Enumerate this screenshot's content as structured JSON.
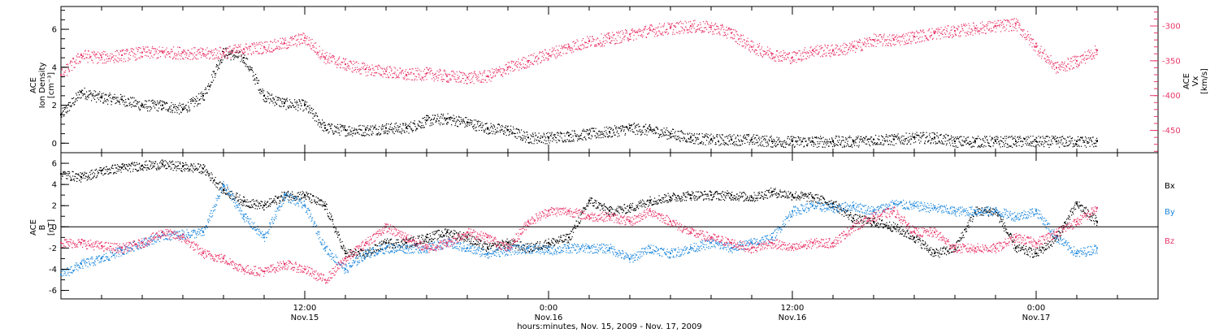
{
  "colors": {
    "black": "#000000",
    "pink": "#e8386a",
    "blue": "#1e88dc",
    "background": "#ffffff"
  },
  "chart_data": [
    {
      "type": "scatter",
      "panel": "top",
      "ylabel": [
        "ACE",
        "Ion Density",
        "[cm⁻³]"
      ],
      "ylabel_right": [
        "ACE",
        "Vx",
        "[km/s]"
      ],
      "ylim": [
        -0.5,
        7.2
      ],
      "yticks": [
        0,
        2,
        4,
        6
      ],
      "ylim_right": [
        -482,
        -272
      ],
      "yticks_right": [
        -300,
        -350,
        -400,
        -450
      ],
      "xlim": [
        0,
        54
      ],
      "x_unit": "hours since Nov 15 2009 00:00",
      "series": [
        {
          "name": "Ion Density",
          "color": "black",
          "axis": "left",
          "x": [
            0,
            1,
            2,
            3,
            4,
            5,
            6,
            7,
            8,
            9,
            10,
            11,
            12,
            13,
            14,
            15,
            16,
            17,
            18,
            19,
            20,
            21,
            22,
            23,
            24,
            25,
            26,
            27,
            28,
            29,
            30,
            31,
            32,
            33,
            34,
            35,
            36,
            37,
            38,
            39,
            40,
            41,
            42,
            43,
            44,
            45,
            46,
            47,
            48,
            49,
            50,
            51
          ],
          "y": [
            1.5,
            2.7,
            2.4,
            2.3,
            2.0,
            2.0,
            1.8,
            2.5,
            4.8,
            4.5,
            2.5,
            2.1,
            2.0,
            0.8,
            0.7,
            0.7,
            0.8,
            0.8,
            1.2,
            1.3,
            1.1,
            0.8,
            0.7,
            0.3,
            0.3,
            0.4,
            0.5,
            0.6,
            0.8,
            0.7,
            0.5,
            0.3,
            0.2,
            0.2,
            0.2,
            0.1,
            0.1,
            0.1,
            0.1,
            0.1,
            0.2,
            0.2,
            0.3,
            0.3,
            0.1,
            0.1,
            0.1,
            0.1,
            0.1,
            0.1,
            0.1,
            0.1
          ]
        },
        {
          "name": "Vx",
          "color": "pink",
          "axis": "right",
          "x": [
            0,
            1,
            2,
            3,
            4,
            5,
            6,
            7,
            8,
            9,
            10,
            11,
            12,
            13,
            14,
            15,
            16,
            17,
            18,
            19,
            20,
            21,
            22,
            23,
            24,
            25,
            26,
            27,
            28,
            29,
            30,
            31,
            32,
            33,
            34,
            35,
            36,
            37,
            38,
            39,
            40,
            41,
            42,
            43,
            44,
            45,
            46,
            47,
            48,
            49,
            50,
            51
          ],
          "y": [
            -370,
            -342,
            -345,
            -342,
            -338,
            -338,
            -338,
            -340,
            -338,
            -333,
            -330,
            -325,
            -317,
            -345,
            -355,
            -362,
            -365,
            -370,
            -368,
            -372,
            -374,
            -372,
            -360,
            -350,
            -340,
            -330,
            -322,
            -318,
            -312,
            -306,
            -303,
            -300,
            -302,
            -310,
            -330,
            -340,
            -345,
            -335,
            -335,
            -330,
            -320,
            -320,
            -315,
            -310,
            -307,
            -303,
            -300,
            -297,
            -330,
            -360,
            -350,
            -335
          ]
        }
      ],
      "label_texts": [
        "6",
        "4",
        "2",
        "0",
        "-300",
        "-350",
        "-400",
        "-450"
      ]
    },
    {
      "type": "scatter",
      "panel": "bottom",
      "ylabel": [
        "ACE",
        "B",
        "[nT]"
      ],
      "ylim": [
        -6.8,
        7.0
      ],
      "yticks": [
        6,
        4,
        2,
        0,
        -2,
        -4,
        -6
      ],
      "xlim": [
        0,
        54
      ],
      "zero_line": true,
      "x_unit": "hours since Nov 15 2009 00:00",
      "series": [
        {
          "name": "Bx",
          "color": "black",
          "x": [
            0,
            1,
            2,
            3,
            4,
            5,
            6,
            7,
            8,
            9,
            10,
            11,
            12,
            13,
            14,
            15,
            16,
            17,
            18,
            19,
            20,
            21,
            22,
            23,
            24,
            25,
            26,
            27,
            28,
            29,
            30,
            31,
            32,
            33,
            34,
            35,
            36,
            37,
            38,
            39,
            40,
            41,
            42,
            43,
            44,
            45,
            46,
            47,
            48,
            49,
            50,
            51
          ],
          "y": [
            5.0,
            4.7,
            5.3,
            5.6,
            5.8,
            5.9,
            5.7,
            5.5,
            3.5,
            2.4,
            2.0,
            3.0,
            3.0,
            2.0,
            -2.5,
            -2.5,
            -1.5,
            -1.5,
            -1.0,
            -0.5,
            -1.0,
            -2.0,
            -1.5,
            -2.0,
            -1.5,
            -1.0,
            2.5,
            1.5,
            1.8,
            2.5,
            2.8,
            3.0,
            3.0,
            3.0,
            2.8,
            3.3,
            3.0,
            2.8,
            2.2,
            0.8,
            0.5,
            0.0,
            -1.0,
            -2.5,
            -2.0,
            1.5,
            1.5,
            -2.0,
            -2.5,
            -1.0,
            2.2,
            0.5
          ]
        },
        {
          "name": "By",
          "color": "blue",
          "x": [
            0,
            1,
            2,
            3,
            4,
            5,
            6,
            7,
            8,
            9,
            10,
            11,
            12,
            13,
            14,
            15,
            16,
            17,
            18,
            19,
            20,
            21,
            22,
            23,
            24,
            25,
            26,
            27,
            28,
            29,
            30,
            31,
            32,
            33,
            34,
            35,
            36,
            37,
            38,
            39,
            40,
            41,
            42,
            43,
            44,
            45,
            46,
            47,
            48,
            49,
            50,
            51
          ],
          "y": [
            -4.5,
            -3.5,
            -3.0,
            -2.2,
            -1.5,
            -0.8,
            -0.7,
            -0.5,
            4.0,
            1.0,
            -1.0,
            3.0,
            2.0,
            -2.0,
            -4.0,
            -2.5,
            -2.0,
            -2.0,
            -2.0,
            -1.5,
            -2.0,
            -2.5,
            -2.2,
            -2.0,
            -2.2,
            -2.0,
            -2.0,
            -2.0,
            -3.0,
            -2.0,
            -2.5,
            -2.0,
            -1.5,
            -2.0,
            -1.5,
            -1.0,
            1.5,
            2.0,
            1.8,
            2.0,
            1.5,
            2.2,
            2.0,
            1.8,
            1.5,
            1.5,
            1.5,
            1.0,
            1.5,
            -1.0,
            -2.5,
            -2.0
          ]
        },
        {
          "name": "Bz",
          "color": "pink",
          "x": [
            0,
            1,
            2,
            3,
            4,
            5,
            6,
            7,
            8,
            9,
            10,
            11,
            12,
            13,
            14,
            15,
            16,
            17,
            18,
            19,
            20,
            21,
            22,
            23,
            24,
            25,
            26,
            27,
            28,
            29,
            30,
            31,
            32,
            33,
            34,
            35,
            36,
            37,
            38,
            39,
            40,
            41,
            42,
            43,
            44,
            45,
            46,
            47,
            48,
            49,
            50,
            51
          ],
          "y": [
            -1.5,
            -1.5,
            -1.8,
            -2.0,
            -1.5,
            -0.5,
            -1.0,
            -2.5,
            -3.0,
            -4.0,
            -4.2,
            -3.5,
            -4.0,
            -5.0,
            -3.0,
            -1.5,
            0.0,
            -1.0,
            -2.0,
            -1.5,
            -0.5,
            -1.0,
            -2.0,
            0.5,
            1.5,
            1.5,
            1.0,
            1.0,
            0.5,
            1.5,
            0.5,
            -0.5,
            -1.0,
            -1.5,
            -2.0,
            -1.5,
            -2.0,
            -1.5,
            -1.5,
            0.0,
            1.0,
            1.5,
            -0.5,
            -0.5,
            -2.0,
            -2.0,
            -2.0,
            -1.0,
            -1.5,
            -0.5,
            0.5,
            1.8
          ]
        }
      ],
      "legend": [
        "Bx",
        "By",
        "Bz"
      ],
      "legend_placement": "right"
    }
  ],
  "x_tick_labels": [
    {
      "time": "12:00",
      "date": "Nov.15",
      "hour": 12
    },
    {
      "time": "0:00",
      "date": "Nov.16",
      "hour": 24
    },
    {
      "time": "12:00",
      "date": "Nov.16",
      "hour": 36
    },
    {
      "time": "0:00",
      "date": "Nov.17",
      "hour": 48
    }
  ],
  "xlabel": "hours:minutes, Nov. 15, 2009 - Nov. 17, 2009"
}
